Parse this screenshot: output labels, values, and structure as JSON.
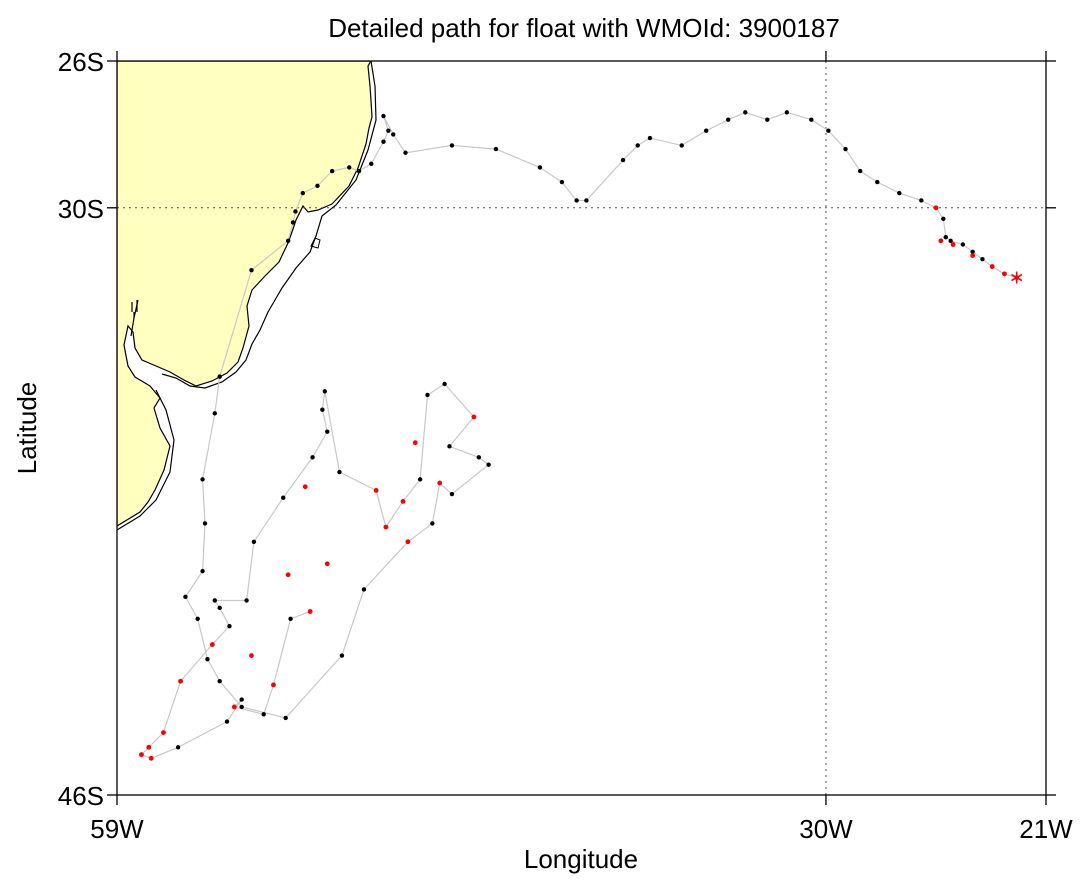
{
  "title": "Detailed path for float with WMOId: 3900187",
  "xlabel": "Longitude",
  "ylabel": "Latitude",
  "colors": {
    "land": "#ffffc0",
    "path_line": "#c8c8c8",
    "point": "#000000",
    "highlight": "#ff0000",
    "grid": "#555555"
  },
  "x_ticks": [
    {
      "label": "59W",
      "lon": -59
    },
    {
      "label": "30W",
      "lon": -30
    },
    {
      "label": "21W",
      "lon": -21
    }
  ],
  "y_ticks": [
    {
      "label": "26S",
      "lat": -26
    },
    {
      "label": "30S",
      "lat": -30
    },
    {
      "label": "46S",
      "lat": -46
    }
  ],
  "chart_data": {
    "type": "scatter",
    "xlim": [
      -59,
      -21
    ],
    "ylim": [
      -46,
      -26
    ],
    "gridlines": {
      "lon": [
        -30
      ],
      "lat": [
        -30
      ]
    },
    "last_position_marker": "asterisk",
    "track": [
      [
        -51.1,
        -41.0
      ],
      [
        -51.9,
        -41.2
      ],
      [
        -52.6,
        -43.0
      ],
      [
        -53.0,
        -43.8
      ],
      [
        -54.2,
        -43.6
      ],
      [
        -53.9,
        -43.4
      ],
      [
        -54.5,
        -44.0
      ],
      [
        -56.5,
        -44.7
      ],
      [
        -57.6,
        -45.0
      ],
      [
        -58.0,
        -44.9
      ],
      [
        -57.7,
        -44.7
      ],
      [
        -57.1,
        -44.3
      ],
      [
        -56.4,
        -42.9
      ],
      [
        -55.1,
        -41.9
      ],
      [
        -54.4,
        -41.4
      ],
      [
        -54.8,
        -40.9
      ],
      [
        -55.0,
        -40.7
      ],
      [
        -53.7,
        -40.7
      ],
      [
        -53.4,
        -39.1
      ],
      [
        -52.2,
        -37.9
      ],
      [
        -51.0,
        -36.8
      ],
      [
        -50.4,
        -36.1
      ],
      [
        -50.6,
        -35.5
      ],
      [
        -50.5,
        -35.0
      ],
      [
        -49.9,
        -37.2
      ],
      [
        -48.4,
        -37.7
      ],
      [
        -48.0,
        -38.7
      ],
      [
        -47.3,
        -38.0
      ],
      [
        -46.6,
        -37.4
      ],
      [
        -46.3,
        -35.1
      ],
      [
        -45.6,
        -34.8
      ],
      [
        -44.4,
        -35.7
      ],
      [
        -45.4,
        -36.5
      ],
      [
        -44.2,
        -36.8
      ],
      [
        -43.8,
        -37.0
      ],
      [
        -45.3,
        -37.8
      ],
      [
        -45.8,
        -37.5
      ],
      [
        -46.1,
        -38.6
      ],
      [
        -47.1,
        -39.1
      ],
      [
        -48.9,
        -40.4
      ],
      [
        -49.8,
        -42.2
      ],
      [
        -52.1,
        -43.9
      ],
      [
        -53.9,
        -43.6
      ],
      [
        -54.8,
        -42.9
      ],
      [
        -55.3,
        -42.3
      ],
      [
        -55.7,
        -41.2
      ],
      [
        -56.2,
        -40.6
      ],
      [
        -55.5,
        -39.9
      ],
      [
        -55.4,
        -38.6
      ],
      [
        -55.5,
        -37.4
      ],
      [
        -55.0,
        -35.6
      ],
      [
        -54.8,
        -34.6
      ],
      [
        -53.5,
        -31.7
      ],
      [
        -52.0,
        -30.9
      ],
      [
        -51.8,
        -30.4
      ],
      [
        -51.7,
        -30.1
      ],
      [
        -51.4,
        -29.6
      ],
      [
        -50.8,
        -29.4
      ],
      [
        -50.2,
        -29.0
      ],
      [
        -49.5,
        -28.9
      ],
      [
        -49.1,
        -29.0
      ],
      [
        -48.6,
        -28.8
      ],
      [
        -48.1,
        -28.2
      ],
      [
        -47.9,
        -27.9
      ],
      [
        -48.1,
        -27.5
      ],
      [
        -47.7,
        -28.0
      ],
      [
        -47.2,
        -28.5
      ],
      [
        -45.3,
        -28.3
      ],
      [
        -43.5,
        -28.4
      ],
      [
        -41.7,
        -28.9
      ],
      [
        -40.8,
        -29.3
      ],
      [
        -40.2,
        -29.8
      ],
      [
        -39.8,
        -29.8
      ],
      [
        -38.3,
        -28.7
      ],
      [
        -37.7,
        -28.3
      ],
      [
        -37.2,
        -28.1
      ],
      [
        -35.9,
        -28.3
      ],
      [
        -34.9,
        -27.9
      ],
      [
        -34.0,
        -27.6
      ],
      [
        -33.3,
        -27.4
      ],
      [
        -32.4,
        -27.6
      ],
      [
        -31.6,
        -27.4
      ],
      [
        -30.6,
        -27.6
      ],
      [
        -29.9,
        -27.9
      ],
      [
        -29.2,
        -28.4
      ],
      [
        -28.6,
        -29.0
      ],
      [
        -27.9,
        -29.3
      ],
      [
        -27.0,
        -29.6
      ],
      [
        -26.1,
        -29.8
      ],
      [
        -25.5,
        -30.0
      ],
      [
        -25.2,
        -30.3
      ],
      [
        -25.1,
        -30.8
      ],
      [
        -24.9,
        -30.9
      ],
      [
        -24.4,
        -31.0
      ],
      [
        -24.0,
        -31.2
      ],
      [
        -23.6,
        -31.4
      ],
      [
        -23.2,
        -31.6
      ],
      [
        -22.7,
        -31.8
      ],
      [
        -22.2,
        -31.9
      ]
    ],
    "highlighted_points": [
      [
        -51.3,
        -37.6
      ],
      [
        -50.4,
        -39.7
      ],
      [
        -53.5,
        -42.2
      ],
      [
        -51.1,
        -41.0
      ],
      [
        -57.6,
        -45.0
      ],
      [
        -58.0,
        -44.9
      ],
      [
        -57.7,
        -44.7
      ],
      [
        -57.1,
        -44.3
      ],
      [
        -56.4,
        -42.9
      ],
      [
        -55.1,
        -41.9
      ],
      [
        -54.2,
        -43.6
      ],
      [
        -52.6,
        -43.0
      ],
      [
        -52.0,
        -40.0
      ],
      [
        -48.0,
        -38.7
      ],
      [
        -47.1,
        -39.1
      ],
      [
        -45.8,
        -37.5
      ],
      [
        -44.4,
        -35.7
      ],
      [
        -47.3,
        -38.0
      ],
      [
        -48.4,
        -37.7
      ],
      [
        -46.8,
        -36.4
      ],
      [
        -25.5,
        -30.0
      ],
      [
        -25.3,
        -30.9
      ],
      [
        -24.8,
        -31.0
      ],
      [
        -24.0,
        -31.3
      ],
      [
        -23.2,
        -31.6
      ],
      [
        -22.7,
        -31.8
      ]
    ],
    "last_position": [
      -22.2,
      -31.9
    ]
  }
}
